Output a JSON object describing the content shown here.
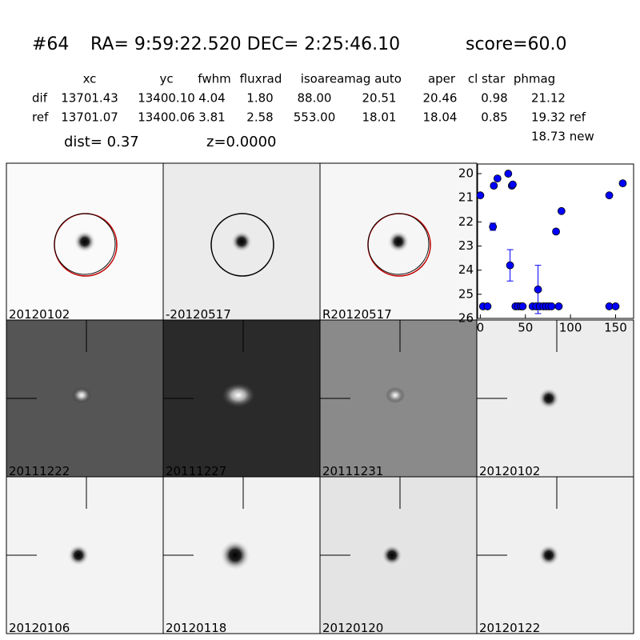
{
  "header": {
    "id": "#64",
    "coords": "RA= 9:59:22.520 DEC= 2:25:46.10",
    "score": "score=60.0"
  },
  "table": {
    "columns": [
      "xc",
      "yc",
      "fwhm",
      "fluxrad",
      "isoarea",
      "mag auto",
      "aper",
      "cl star",
      "phmag"
    ],
    "rows": [
      [
        "dif",
        "13701.43",
        "13400.10",
        "4.04",
        "1.80",
        "88.00",
        "20.51",
        "20.46",
        "0.98",
        "21.12"
      ],
      [
        "ref",
        "13701.07",
        "13400.06",
        "3.81",
        "2.58",
        "553.00",
        "18.01",
        "18.04",
        "0.85",
        "19.32 ref"
      ]
    ],
    "extra": "18.73 new"
  },
  "dist": "dist=  0.37",
  "z": "z=0.0000",
  "panels": [
    "20120102",
    "-20120517",
    "R20120517",
    "20111222",
    "20111227",
    "20111231",
    "20120102",
    "20120106",
    "20120118",
    "20120120",
    "20120122"
  ],
  "chart_data": {
    "type": "scatter",
    "x": [
      0,
      3,
      8,
      14,
      15,
      19,
      31,
      33,
      35,
      36,
      39,
      42,
      45,
      47,
      58,
      62,
      64,
      66,
      70,
      73,
      76,
      79,
      84,
      87,
      90,
      143,
      143,
      150,
      158
    ],
    "series": [
      {
        "color": "#0000ff",
        "values": [
          20.9,
          25.5,
          25.5,
          22.2,
          20.5,
          20.2,
          20.0,
          23.8,
          20.5,
          20.45,
          25.5,
          25.5,
          25.5,
          25.5,
          25.5,
          25.5,
          24.8,
          25.5,
          25.5,
          25.5,
          25.5,
          25.5,
          22.4,
          25.5,
          21.55,
          20.9,
          25.5,
          25.5,
          20.4
        ],
        "errors": [
          null,
          null,
          null,
          0.15,
          null,
          null,
          null,
          0.65,
          null,
          null,
          null,
          null,
          null,
          null,
          null,
          null,
          1.0,
          null,
          null,
          null,
          null,
          null,
          0.1,
          null,
          null,
          null,
          null,
          null,
          null
        ]
      }
    ],
    "xlim": [
      -3,
      170
    ],
    "ylim": [
      26,
      19.6
    ],
    "xticks": [
      0,
      50,
      100,
      150
    ],
    "yticks": [
      20,
      21,
      22,
      23,
      24,
      25,
      26
    ]
  }
}
